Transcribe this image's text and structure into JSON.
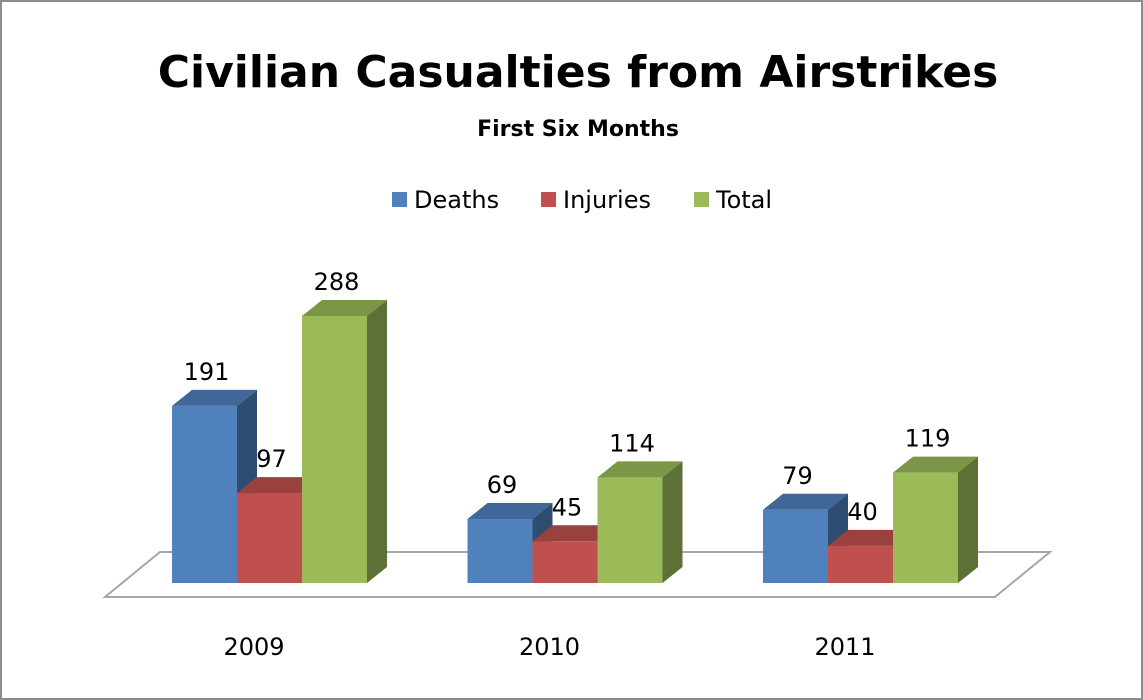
{
  "chart_data": {
    "type": "bar3d",
    "title": "Civilian Casualties from Airstrikes",
    "subtitle": "First Six Months",
    "categories": [
      "2009",
      "2010",
      "2011"
    ],
    "series": [
      {
        "name": "Deaths",
        "color": "#4f81bd",
        "values": [
          191,
          69,
          79
        ]
      },
      {
        "name": "Injuries",
        "color": "#c0504d",
        "values": [
          97,
          45,
          40
        ]
      },
      {
        "name": "Total",
        "color": "#9bbb59",
        "values": [
          288,
          114,
          119
        ]
      }
    ],
    "legend": "top"
  }
}
